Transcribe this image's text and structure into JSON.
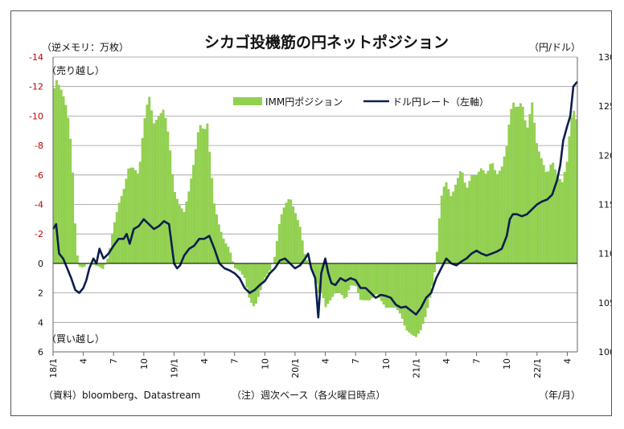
{
  "chart_data": {
    "type": "bar+line",
    "title": "シカゴ投機筋の円ネットポジション",
    "left_unit": "（逆メモリ：万枚）",
    "right_unit": "（円/ドル）",
    "time_unit": "（年/月）",
    "source_note": "（資料）bloomberg、Datastream",
    "note": "（注）週次ベース（各火曜日時点）",
    "annotation_top": "（売り越し）",
    "annotation_bottom": "（買い越し）",
    "legend": {
      "bar_label": "IMM円ポジション",
      "line_label": "ドル円レート（左軸）"
    },
    "left_axis": {
      "min": -14,
      "max": 6,
      "step": 2,
      "inverted": true,
      "tick_labels": [
        "-14",
        "-12",
        "-10",
        "-8",
        "-6",
        "-4",
        "-2",
        "0",
        "2",
        "4",
        "6"
      ]
    },
    "right_axis": {
      "min": 100,
      "max": 130,
      "step": 5,
      "tick_labels": [
        "130",
        "125",
        "120",
        "115",
        "110",
        "105",
        "100"
      ]
    },
    "x_tick_labels": [
      {
        "pos": 0,
        "label": "18/1"
      },
      {
        "pos": 3,
        "label": "4"
      },
      {
        "pos": 6,
        "label": "7"
      },
      {
        "pos": 9,
        "label": "10"
      },
      {
        "pos": 12,
        "label": "19/1"
      },
      {
        "pos": 15,
        "label": "4"
      },
      {
        "pos": 18,
        "label": "7"
      },
      {
        "pos": 21,
        "label": "10"
      },
      {
        "pos": 24,
        "label": "20/1"
      },
      {
        "pos": 27,
        "label": "4"
      },
      {
        "pos": 30,
        "label": "7"
      },
      {
        "pos": 33,
        "label": "10"
      },
      {
        "pos": 36,
        "label": "21/1"
      },
      {
        "pos": 39,
        "label": "4"
      },
      {
        "pos": 42,
        "label": "7"
      },
      {
        "pos": 45,
        "label": "10"
      },
      {
        "pos": 48,
        "label": "22/1"
      },
      {
        "pos": 51,
        "label": "4"
      }
    ],
    "x_range_months": [
      0,
      52
    ],
    "bar_color": "#92d050",
    "line_color": "#0b1f4d",
    "positions_keypoints": [
      [
        0,
        -11.5
      ],
      [
        0.3,
        -12.5
      ],
      [
        0.8,
        -11.8
      ],
      [
        1.2,
        -11
      ],
      [
        1.6,
        -9.5
      ],
      [
        1.9,
        -7
      ],
      [
        2.1,
        -4
      ],
      [
        2.3,
        -1
      ],
      [
        2.6,
        0.2
      ],
      [
        3,
        0.3
      ],
      [
        3.4,
        0
      ],
      [
        4,
        0.1
      ],
      [
        4.5,
        0.2
      ],
      [
        5,
        0.4
      ],
      [
        5.5,
        -0.5
      ],
      [
        6,
        -2.5
      ],
      [
        6.5,
        -4
      ],
      [
        7,
        -5
      ],
      [
        7.5,
        -6.5
      ],
      [
        8,
        -6.5
      ],
      [
        8.5,
        -6
      ],
      [
        9,
        -9.5
      ],
      [
        9.5,
        -11.5
      ],
      [
        10,
        -9.5
      ],
      [
        10.5,
        -10
      ],
      [
        11,
        -10.5
      ],
      [
        11.5,
        -8.5
      ],
      [
        12,
        -5
      ],
      [
        12.5,
        -4
      ],
      [
        13,
        -3.5
      ],
      [
        13.5,
        -5
      ],
      [
        14,
        -7
      ],
      [
        14.5,
        -9.5
      ],
      [
        15,
        -9
      ],
      [
        15.3,
        -9.5
      ],
      [
        15.6,
        -7
      ],
      [
        16,
        -4
      ],
      [
        16.5,
        -2.5
      ],
      [
        17,
        -1.5
      ],
      [
        17.5,
        -1
      ],
      [
        18,
        0.3
      ],
      [
        18.5,
        0.5
      ],
      [
        19,
        1
      ],
      [
        19.5,
        2.5
      ],
      [
        20,
        3
      ],
      [
        20.5,
        2
      ],
      [
        21,
        1
      ],
      [
        21.5,
        0.5
      ],
      [
        22,
        -0.5
      ],
      [
        22.5,
        -3
      ],
      [
        23,
        -4
      ],
      [
        23.5,
        -4.5
      ],
      [
        24,
        -3.5
      ],
      [
        24.5,
        -2.5
      ],
      [
        25,
        -0.5
      ],
      [
        25.5,
        0.2
      ],
      [
        26,
        1
      ],
      [
        26.3,
        2
      ],
      [
        26.7,
        2
      ],
      [
        27,
        3
      ],
      [
        27.5,
        2.5
      ],
      [
        28,
        2
      ],
      [
        28.5,
        2
      ],
      [
        29,
        2.5
      ],
      [
        29.5,
        1.5
      ],
      [
        30,
        1.5
      ],
      [
        30.5,
        2.5
      ],
      [
        31,
        2.5
      ],
      [
        31.5,
        2.5
      ],
      [
        32,
        2
      ],
      [
        32.5,
        2.5
      ],
      [
        33,
        3
      ],
      [
        33.5,
        3
      ],
      [
        34,
        3
      ],
      [
        34.5,
        3.5
      ],
      [
        35,
        4.5
      ],
      [
        35.5,
        4.8
      ],
      [
        36,
        5
      ],
      [
        36.5,
        4.5
      ],
      [
        37,
        3.5
      ],
      [
        37.5,
        2
      ],
      [
        38,
        0
      ],
      [
        38.3,
        -3
      ],
      [
        38.6,
        -5
      ],
      [
        39,
        -5.5
      ],
      [
        39.5,
        -4.5
      ],
      [
        40,
        -5.5
      ],
      [
        40.5,
        -6.5
      ],
      [
        41,
        -5
      ],
      [
        41.5,
        -6
      ],
      [
        42,
        -6
      ],
      [
        42.5,
        -6.5
      ],
      [
        43,
        -6
      ],
      [
        43.5,
        -7
      ],
      [
        44,
        -6
      ],
      [
        44.5,
        -6.5
      ],
      [
        45,
        -8
      ],
      [
        45.3,
        -10
      ],
      [
        45.6,
        -11
      ],
      [
        46,
        -10.5
      ],
      [
        46.5,
        -11
      ],
      [
        47,
        -9
      ],
      [
        47.5,
        -11
      ],
      [
        48,
        -8
      ],
      [
        48.5,
        -7
      ],
      [
        49,
        -6
      ],
      [
        49.5,
        -7
      ],
      [
        50,
        -6
      ],
      [
        50.5,
        -5.5
      ],
      [
        51,
        -7
      ],
      [
        51.3,
        -9.5
      ],
      [
        51.6,
        -10.5
      ],
      [
        52,
        -9.5
      ]
    ],
    "usdjpy_keypoints": [
      [
        0,
        112.5
      ],
      [
        0.3,
        113
      ],
      [
        0.6,
        110
      ],
      [
        1,
        109.5
      ],
      [
        1.4,
        108.5
      ],
      [
        1.8,
        107.5
      ],
      [
        2.2,
        106.3
      ],
      [
        2.6,
        106
      ],
      [
        3,
        106.5
      ],
      [
        3.3,
        107.3
      ],
      [
        3.6,
        108.5
      ],
      [
        4,
        109.5
      ],
      [
        4.3,
        109
      ],
      [
        4.6,
        110.5
      ],
      [
        5,
        109.5
      ],
      [
        5.5,
        110
      ],
      [
        6,
        110.8
      ],
      [
        6.5,
        111.5
      ],
      [
        7,
        111.5
      ],
      [
        7.3,
        112
      ],
      [
        7.6,
        111
      ],
      [
        8,
        112.5
      ],
      [
        8.5,
        112.8
      ],
      [
        9,
        113.5
      ],
      [
        9.5,
        113
      ],
      [
        10,
        112.5
      ],
      [
        10.5,
        112.8
      ],
      [
        11,
        113.3
      ],
      [
        11.5,
        113
      ],
      [
        12,
        109
      ],
      [
        12.3,
        108.5
      ],
      [
        12.6,
        108.8
      ],
      [
        13,
        109.8
      ],
      [
        13.5,
        110.5
      ],
      [
        14,
        110.8
      ],
      [
        14.5,
        111.5
      ],
      [
        15,
        111.5
      ],
      [
        15.5,
        111.8
      ],
      [
        16,
        110.5
      ],
      [
        16.5,
        109
      ],
      [
        17,
        108.5
      ],
      [
        17.5,
        108.3
      ],
      [
        18,
        108
      ],
      [
        18.5,
        107.5
      ],
      [
        19,
        106.5
      ],
      [
        19.5,
        106
      ],
      [
        20,
        106.3
      ],
      [
        20.5,
        106.8
      ],
      [
        21,
        107.2
      ],
      [
        21.5,
        108
      ],
      [
        22,
        108.5
      ],
      [
        22.5,
        109.3
      ],
      [
        23,
        109.5
      ],
      [
        23.5,
        109
      ],
      [
        24,
        108.5
      ],
      [
        24.5,
        108.8
      ],
      [
        25,
        109.5
      ],
      [
        25.3,
        110
      ],
      [
        25.6,
        108.5
      ],
      [
        26,
        107.5
      ],
      [
        26.3,
        103.5
      ],
      [
        26.6,
        108
      ],
      [
        27,
        109.5
      ],
      [
        27.3,
        108
      ],
      [
        27.6,
        107
      ],
      [
        28,
        106.8
      ],
      [
        28.5,
        107.5
      ],
      [
        29,
        107.2
      ],
      [
        29.5,
        107.5
      ],
      [
        30,
        107.3
      ],
      [
        30.5,
        106.5
      ],
      [
        31,
        106.5
      ],
      [
        31.5,
        106
      ],
      [
        32,
        105.5
      ],
      [
        32.5,
        105.8
      ],
      [
        33,
        105.7
      ],
      [
        33.5,
        105.5
      ],
      [
        34,
        104.8
      ],
      [
        34.5,
        104.5
      ],
      [
        35,
        104.6
      ],
      [
        35.5,
        104.2
      ],
      [
        36,
        103.8
      ],
      [
        36.5,
        104.5
      ],
      [
        37,
        105.5
      ],
      [
        37.5,
        106
      ],
      [
        38,
        107.5
      ],
      [
        38.5,
        108.5
      ],
      [
        39,
        109.5
      ],
      [
        39.5,
        109
      ],
      [
        40,
        108.8
      ],
      [
        40.5,
        109.2
      ],
      [
        41,
        109.5
      ],
      [
        41.5,
        110
      ],
      [
        42,
        110.3
      ],
      [
        42.5,
        110
      ],
      [
        43,
        109.8
      ],
      [
        43.5,
        110
      ],
      [
        44,
        110.2
      ],
      [
        44.5,
        110.5
      ],
      [
        45,
        111.8
      ],
      [
        45.3,
        113.5
      ],
      [
        45.6,
        114
      ],
      [
        46,
        114
      ],
      [
        46.5,
        113.8
      ],
      [
        47,
        114
      ],
      [
        47.5,
        114.5
      ],
      [
        48,
        115
      ],
      [
        48.5,
        115.3
      ],
      [
        49,
        115.5
      ],
      [
        49.5,
        116
      ],
      [
        50,
        117.5
      ],
      [
        50.3,
        119
      ],
      [
        50.6,
        121.5
      ],
      [
        51,
        123
      ],
      [
        51.3,
        124
      ],
      [
        51.6,
        127
      ],
      [
        52,
        127.5
      ]
    ]
  }
}
